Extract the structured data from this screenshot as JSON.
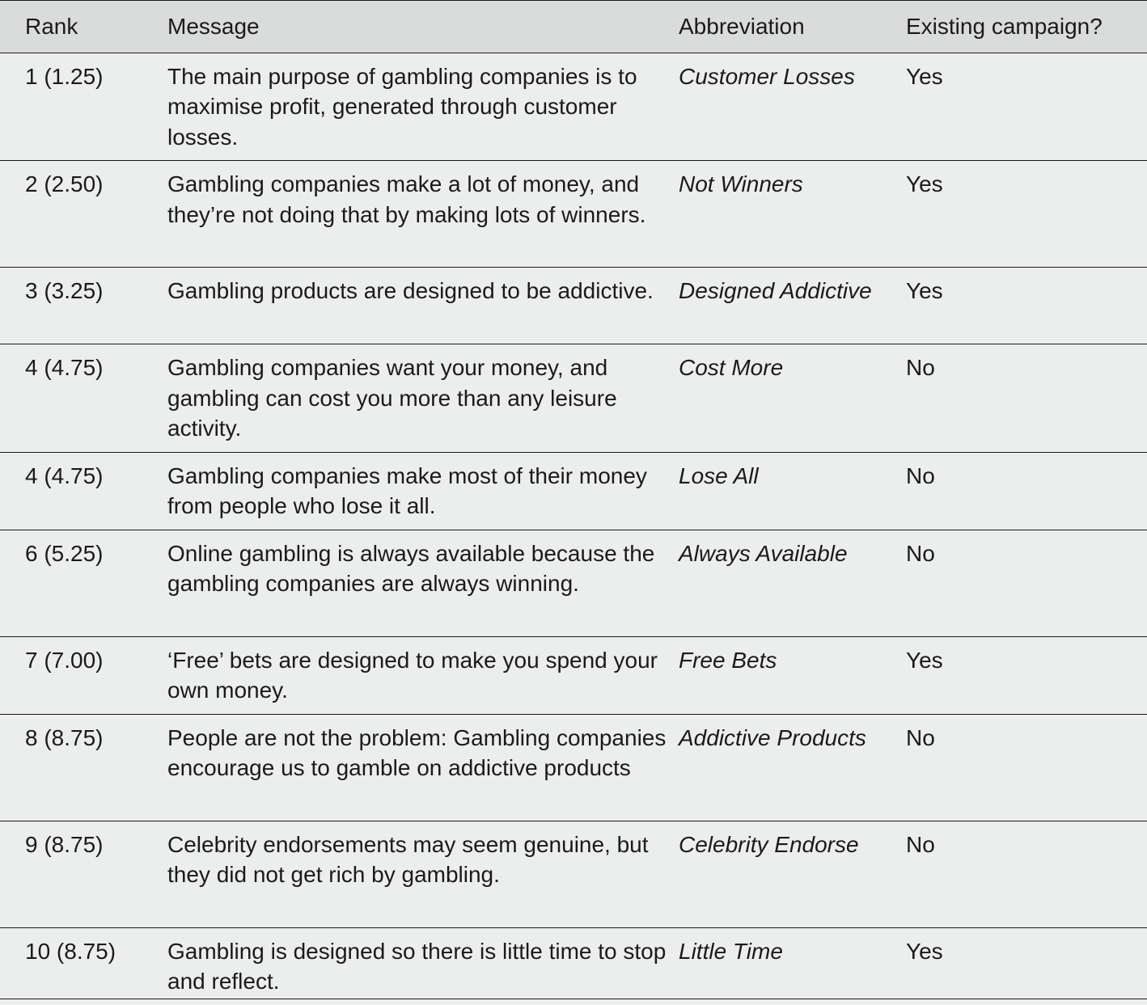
{
  "table": {
    "headers": {
      "rank": "Rank",
      "message": "Message",
      "abbreviation": "Abbreviation",
      "existing_campaign": "Existing campaign?"
    },
    "rows": [
      {
        "rank": "1 (1.25)",
        "message": "The main purpose of gambling companies is to maximise profit, generated through customer losses.",
        "abbreviation": "Customer Losses",
        "existing_campaign": "Yes"
      },
      {
        "rank": "2 (2.50)",
        "message": "Gambling companies make a lot of money, and they’re not doing that by making lots of winners.",
        "abbreviation": "Not Winners",
        "existing_campaign": "Yes"
      },
      {
        "rank": "3 (3.25)",
        "message": "Gambling products are designed to be addictive.",
        "abbreviation": "Designed Addictive",
        "existing_campaign": "Yes"
      },
      {
        "rank": "4 (4.75)",
        "message": "Gambling companies want your money, and gambling can cost you more than any leisure activity.",
        "abbreviation": "Cost More",
        "existing_campaign": "No"
      },
      {
        "rank": "4 (4.75)",
        "message": "Gambling companies make most of their money from people who lose it all.",
        "abbreviation": "Lose All",
        "existing_campaign": "No"
      },
      {
        "rank": "6 (5.25)",
        "message": "Online gambling is always available because the gambling companies are always winning.",
        "abbreviation": "Always Available",
        "existing_campaign": "No"
      },
      {
        "rank": "7 (7.00)",
        "message": "‘Free’ bets are designed to make you spend your own money.",
        "abbreviation": "Free Bets",
        "existing_campaign": "Yes"
      },
      {
        "rank": "8 (8.75)",
        "message": "People are not the problem: Gambling companies encourage us to gamble on addictive products",
        "abbreviation": "Addictive Products",
        "existing_campaign": "No"
      },
      {
        "rank": "9 (8.75)",
        "message": "Celebrity endorsements may seem genuine, but they did not get rich by gambling.",
        "abbreviation": "Celebrity Endorse",
        "existing_campaign": "No"
      },
      {
        "rank": "10 (8.75)",
        "message": "Gambling is designed so there is little time to stop and reflect.",
        "abbreviation": "Little Time",
        "existing_campaign": "Yes"
      }
    ]
  }
}
